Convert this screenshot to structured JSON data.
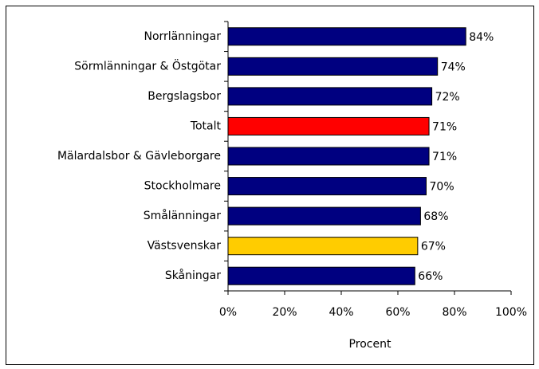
{
  "chart_data": {
    "type": "hbar",
    "categories": [
      "Norrlänningar",
      "Sörmlänningar & Östgötar",
      "Bergslagsbor",
      "Totalt",
      "Mälardalsbor & Gävleborgare",
      "Stockholmare",
      "Smålänningar",
      "Västsvenskar",
      "Skåningar"
    ],
    "values": [
      84,
      74,
      72,
      71,
      71,
      70,
      68,
      67,
      66
    ],
    "value_labels": [
      "84%",
      "74%",
      "72%",
      "71%",
      "71%",
      "70%",
      "68%",
      "67%",
      "66%"
    ],
    "colors": [
      "#000080",
      "#000080",
      "#000080",
      "#ff0000",
      "#000080",
      "#000080",
      "#000080",
      "#ffcc00",
      "#000080"
    ],
    "xlim": [
      0,
      100
    ],
    "xticks": [
      {
        "value": 0,
        "label": "0%"
      },
      {
        "value": 20,
        "label": "20%"
      },
      {
        "value": 40,
        "label": "40%"
      },
      {
        "value": 60,
        "label": "60%"
      },
      {
        "value": 80,
        "label": "80%"
      },
      {
        "value": 100,
        "label": "100%"
      }
    ],
    "x_label": "Procent"
  }
}
